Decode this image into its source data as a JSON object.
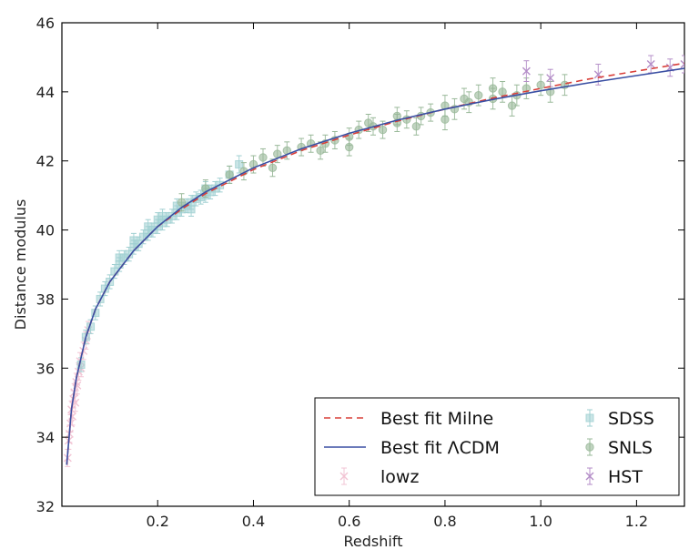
{
  "chart_data": {
    "type": "scatter",
    "title": "",
    "xlabel": "Redshift",
    "ylabel": "Distance modulus",
    "xlim": [
      0.0,
      1.3
    ],
    "ylim": [
      32,
      46
    ],
    "x_ticks": [
      0.2,
      0.4,
      0.6,
      0.8,
      1.0,
      1.2
    ],
    "x_tick_labels": [
      "0.2",
      "0.4",
      "0.6",
      "0.8",
      "1.0",
      "1.2"
    ],
    "y_ticks": [
      32,
      34,
      36,
      38,
      40,
      42,
      44,
      46
    ],
    "y_tick_labels": [
      "32",
      "34",
      "36",
      "38",
      "40",
      "42",
      "44",
      "46"
    ],
    "grid": false,
    "legend_position": "bottom-right",
    "series": [
      {
        "name": "Best fit Milne",
        "kind": "line",
        "style": "dashed",
        "color": "#d9403a",
        "x": [
          0.01,
          0.02,
          0.03,
          0.05,
          0.07,
          0.1,
          0.15,
          0.2,
          0.25,
          0.3,
          0.4,
          0.5,
          0.6,
          0.7,
          0.8,
          0.9,
          1.0,
          1.1,
          1.2,
          1.3
        ],
        "y": [
          33.2,
          34.8,
          35.7,
          36.9,
          37.7,
          38.5,
          39.4,
          40.1,
          40.6,
          41.05,
          41.75,
          42.3,
          42.75,
          43.15,
          43.5,
          43.82,
          44.1,
          44.37,
          44.6,
          44.83
        ]
      },
      {
        "name": "Best fit ΛCDM",
        "kind": "line",
        "style": "solid",
        "color": "#3a4fa3",
        "x": [
          0.01,
          0.02,
          0.03,
          0.05,
          0.07,
          0.1,
          0.15,
          0.2,
          0.25,
          0.3,
          0.4,
          0.5,
          0.6,
          0.7,
          0.8,
          0.9,
          1.0,
          1.1,
          1.2,
          1.3
        ],
        "y": [
          33.2,
          34.8,
          35.7,
          36.9,
          37.7,
          38.5,
          39.4,
          40.1,
          40.65,
          41.1,
          41.8,
          42.35,
          42.8,
          43.18,
          43.5,
          43.78,
          44.03,
          44.26,
          44.47,
          44.68
        ]
      },
      {
        "name": "lowz",
        "kind": "errorbar",
        "marker": "x",
        "color": "#f2c4d4",
        "x": [
          0.012,
          0.014,
          0.016,
          0.018,
          0.02,
          0.022,
          0.024,
          0.026,
          0.028,
          0.03,
          0.032,
          0.035,
          0.038,
          0.04,
          0.045,
          0.05,
          0.055
        ],
        "y": [
          33.4,
          33.9,
          34.1,
          34.4,
          34.8,
          34.6,
          35.1,
          35.3,
          35.0,
          35.6,
          35.5,
          35.9,
          36.2,
          36.0,
          36.5,
          36.8,
          37.1
        ],
        "err": [
          0.25,
          0.25,
          0.25,
          0.25,
          0.25,
          0.25,
          0.25,
          0.25,
          0.25,
          0.25,
          0.25,
          0.25,
          0.25,
          0.25,
          0.25,
          0.25,
          0.25
        ]
      },
      {
        "name": "SDSS",
        "kind": "errorbar",
        "marker": "square",
        "color": "#9fcfd1",
        "x": [
          0.04,
          0.05,
          0.06,
          0.07,
          0.08,
          0.09,
          0.1,
          0.11,
          0.12,
          0.13,
          0.14,
          0.15,
          0.16,
          0.17,
          0.18,
          0.19,
          0.2,
          0.21,
          0.22,
          0.23,
          0.24,
          0.25,
          0.26,
          0.27,
          0.28,
          0.29,
          0.3,
          0.31,
          0.32,
          0.33,
          0.35,
          0.37,
          0.12,
          0.15,
          0.18,
          0.21,
          0.24,
          0.27,
          0.3,
          0.2
        ],
        "y": [
          36.1,
          36.9,
          37.2,
          37.6,
          38.0,
          38.3,
          38.5,
          38.8,
          39.0,
          39.2,
          39.3,
          39.5,
          39.6,
          39.8,
          39.9,
          40.0,
          40.1,
          40.2,
          40.3,
          40.4,
          40.5,
          40.6,
          40.7,
          40.8,
          40.9,
          40.95,
          41.0,
          41.1,
          41.2,
          41.3,
          41.6,
          41.9,
          39.2,
          39.7,
          40.1,
          40.4,
          40.7,
          40.6,
          41.2,
          40.3
        ],
        "err": [
          0.2,
          0.2,
          0.2,
          0.2,
          0.2,
          0.2,
          0.2,
          0.2,
          0.2,
          0.2,
          0.2,
          0.2,
          0.2,
          0.2,
          0.2,
          0.2,
          0.2,
          0.2,
          0.2,
          0.2,
          0.2,
          0.2,
          0.2,
          0.2,
          0.2,
          0.2,
          0.2,
          0.2,
          0.2,
          0.2,
          0.25,
          0.25,
          0.2,
          0.2,
          0.2,
          0.2,
          0.2,
          0.2,
          0.2,
          0.2
        ]
      },
      {
        "name": "SNLS",
        "kind": "errorbar",
        "marker": "circle",
        "color": "#98b898",
        "x": [
          0.25,
          0.3,
          0.35,
          0.38,
          0.4,
          0.42,
          0.45,
          0.47,
          0.5,
          0.52,
          0.55,
          0.57,
          0.6,
          0.62,
          0.65,
          0.67,
          0.7,
          0.72,
          0.75,
          0.77,
          0.8,
          0.82,
          0.85,
          0.87,
          0.9,
          0.92,
          0.95,
          0.97,
          1.0,
          1.02,
          1.05,
          0.44,
          0.54,
          0.64,
          0.74,
          0.84,
          0.94,
          0.6,
          0.7,
          0.8,
          0.9
        ],
        "y": [
          40.8,
          41.2,
          41.6,
          41.7,
          41.9,
          42.1,
          42.2,
          42.3,
          42.4,
          42.5,
          42.5,
          42.6,
          42.7,
          42.9,
          43.0,
          42.9,
          43.1,
          43.2,
          43.3,
          43.4,
          43.6,
          43.5,
          43.7,
          43.9,
          43.8,
          44.0,
          43.9,
          44.1,
          44.2,
          44.0,
          44.2,
          41.8,
          42.3,
          43.1,
          43.0,
          43.8,
          43.6,
          42.4,
          43.3,
          43.2,
          44.1
        ],
        "err": [
          0.25,
          0.25,
          0.25,
          0.25,
          0.25,
          0.25,
          0.25,
          0.25,
          0.25,
          0.25,
          0.25,
          0.25,
          0.25,
          0.25,
          0.25,
          0.25,
          0.25,
          0.25,
          0.25,
          0.25,
          0.3,
          0.3,
          0.3,
          0.3,
          0.3,
          0.3,
          0.3,
          0.3,
          0.3,
          0.3,
          0.3,
          0.25,
          0.25,
          0.25,
          0.25,
          0.3,
          0.3,
          0.25,
          0.25,
          0.3,
          0.3
        ]
      },
      {
        "name": "HST",
        "kind": "errorbar",
        "marker": "x",
        "color": "#b48ec8",
        "x": [
          0.97,
          1.02,
          1.12,
          1.23,
          1.27,
          1.3
        ],
        "y": [
          44.6,
          44.4,
          44.5,
          44.8,
          44.7,
          44.8
        ],
        "err": [
          0.3,
          0.25,
          0.3,
          0.25,
          0.25,
          0.25
        ]
      }
    ],
    "legend": [
      {
        "label": "Best fit Milne",
        "series": "Best fit Milne"
      },
      {
        "label": "SDSS",
        "series": "SDSS"
      },
      {
        "label": "Best fit ΛCDM",
        "series": "Best fit ΛCDM"
      },
      {
        "label": "SNLS",
        "series": "SNLS"
      },
      {
        "label": "lowz",
        "series": "lowz"
      },
      {
        "label": "HST",
        "series": "HST"
      }
    ]
  }
}
